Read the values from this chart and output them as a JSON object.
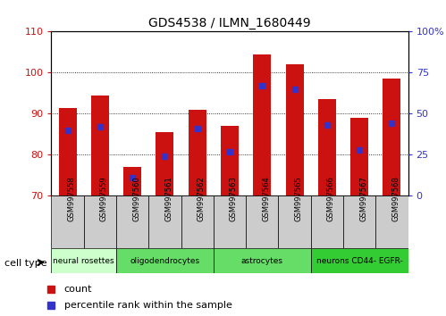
{
  "title": "GDS4538 / ILMN_1680449",
  "samples": [
    "GSM997558",
    "GSM997559",
    "GSM997560",
    "GSM997561",
    "GSM997562",
    "GSM997563",
    "GSM997564",
    "GSM997565",
    "GSM997566",
    "GSM997567",
    "GSM997568"
  ],
  "counts": [
    91.5,
    94.5,
    77.0,
    85.5,
    91.0,
    87.0,
    104.5,
    102.0,
    93.5,
    89.0,
    98.5
  ],
  "percentile_ranks": [
    40,
    42,
    11,
    24,
    41,
    27,
    67,
    65,
    43,
    28,
    44
  ],
  "ylim_left": [
    70,
    110
  ],
  "ylim_right": [
    0,
    100
  ],
  "yticks_left": [
    70,
    80,
    90,
    100,
    110
  ],
  "yticks_right": [
    0,
    25,
    50,
    75,
    100
  ],
  "ytick_labels_right": [
    "0",
    "25",
    "50",
    "75",
    "100%"
  ],
  "bar_color": "#cc1111",
  "percentile_color": "#3333cc",
  "bar_bottom": 70,
  "cell_type_groups": [
    {
      "label": "neural rosettes",
      "start": 0,
      "end": 2,
      "color": "#ccffcc"
    },
    {
      "label": "oligodendrocytes",
      "start": 2,
      "end": 5,
      "color": "#66dd66"
    },
    {
      "label": "astrocytes",
      "start": 5,
      "end": 8,
      "color": "#66dd66"
    },
    {
      "label": "neurons CD44- EGFR-",
      "start": 8,
      "end": 11,
      "color": "#33cc33"
    }
  ],
  "tick_label_color_left": "#cc1111",
  "tick_label_color_right": "#3333cc",
  "bg_color": "#ffffff",
  "sample_box_color": "#cccccc",
  "legend_count_color": "#cc1111",
  "legend_pct_color": "#3333cc"
}
